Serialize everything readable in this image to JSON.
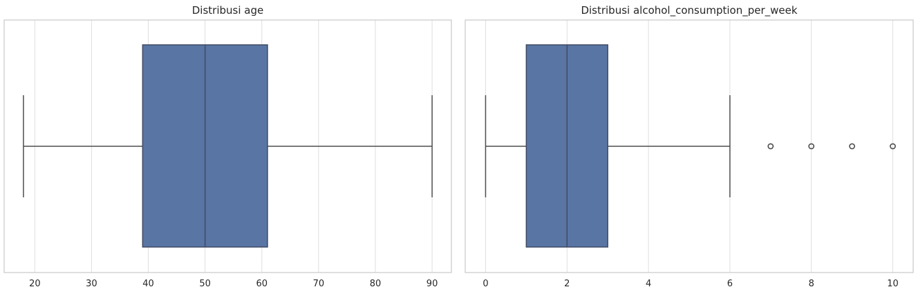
{
  "chart_data": [
    {
      "type": "box",
      "title": "Distribusi age",
      "xlabel": "",
      "ylabel": "",
      "xlim": [
        14.6,
        93.4
      ],
      "ticks": [
        20,
        30,
        40,
        50,
        60,
        70,
        80,
        90
      ],
      "tick_labels": [
        "20",
        "30",
        "40",
        "50",
        "60",
        "70",
        "80",
        "90"
      ],
      "box": {
        "whisker_low": 18,
        "q1": 39,
        "median": 50,
        "q3": 61,
        "whisker_high": 90
      },
      "outliers": [],
      "grid": true,
      "color": "#5975a4"
    },
    {
      "type": "box",
      "title": "Distribusi alcohol_consumption_per_week",
      "xlabel": "",
      "ylabel": "",
      "xlim": [
        -0.5,
        10.5
      ],
      "ticks": [
        0,
        2,
        4,
        6,
        8,
        10
      ],
      "tick_labels": [
        "0",
        "2",
        "4",
        "6",
        "8",
        "10"
      ],
      "box": {
        "whisker_low": 0,
        "q1": 1,
        "median": 2,
        "q3": 3,
        "whisker_high": 6
      },
      "outliers": [
        7,
        8,
        9,
        10
      ],
      "grid": true,
      "color": "#5975a4"
    }
  ]
}
